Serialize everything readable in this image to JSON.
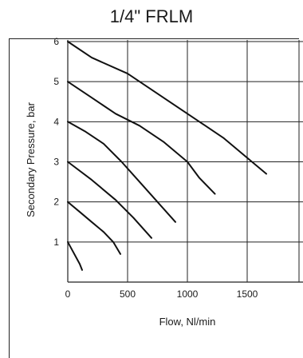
{
  "chart_data": {
    "type": "line",
    "title": "1/4\" FRLM",
    "xlabel": "Flow, Nl/min",
    "ylabel": "Secondary Pressure, bar",
    "xlim": [
      0,
      2000
    ],
    "ylim": [
      0,
      6
    ],
    "xticks": [
      0,
      500,
      1000,
      1500
    ],
    "yticks": [
      1,
      2,
      3,
      4,
      5,
      6
    ],
    "grid": true,
    "series": [
      {
        "x": [
          0,
          100,
          120
        ],
        "y": [
          1,
          0.45,
          0.3
        ]
      },
      {
        "x": [
          0,
          100,
          200,
          300,
          380,
          440
        ],
        "y": [
          2,
          1.75,
          1.5,
          1.25,
          1.0,
          0.7
        ]
      },
      {
        "x": [
          0,
          200,
          400,
          550,
          700
        ],
        "y": [
          3,
          2.55,
          2.05,
          1.6,
          1.1
        ]
      },
      {
        "x": [
          0,
          150,
          300,
          450,
          600,
          750,
          900
        ],
        "y": [
          4,
          3.75,
          3.45,
          3.0,
          2.5,
          2.0,
          1.5
        ]
      },
      {
        "x": [
          0,
          200,
          400,
          600,
          800,
          1000,
          1100,
          1230
        ],
        "y": [
          5,
          4.6,
          4.2,
          3.9,
          3.5,
          3.0,
          2.6,
          2.2
        ]
      },
      {
        "x": [
          0,
          200,
          500,
          800,
          1100,
          1300,
          1500,
          1660
        ],
        "y": [
          6,
          5.6,
          5.2,
          4.6,
          4.0,
          3.6,
          3.1,
          2.7
        ]
      }
    ]
  }
}
